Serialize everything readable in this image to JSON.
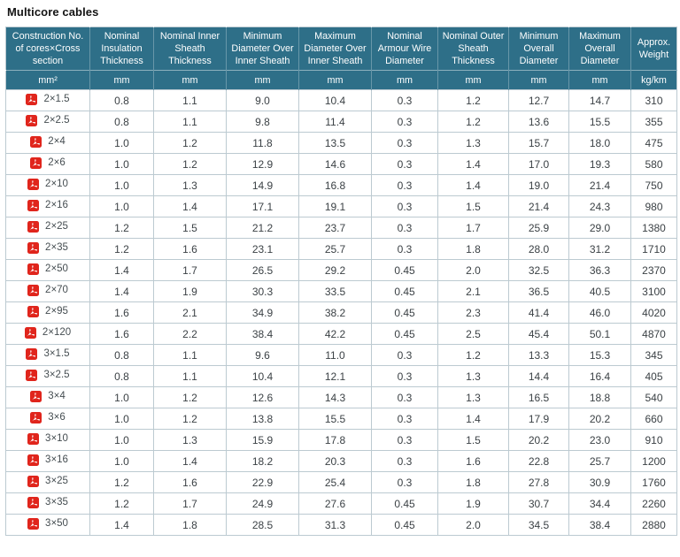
{
  "page": {
    "title": "Multicore cables"
  },
  "colors": {
    "header_bg": "#2e6f88",
    "header_text": "#ffffff",
    "border": "#bccad1",
    "pdf_red": "#e0251c",
    "row_text": "#3b4145"
  },
  "icons": {
    "row_link": "pdf-file-icon"
  },
  "table": {
    "headers": [
      "Construction No. of cores×Cross section",
      "Nominal Insulation Thickness",
      "Nominal Inner Sheath Thickness",
      "Minimum Diameter Over Inner Sheath",
      "Maximum Diameter Over Inner Sheath",
      "Nominal Armour Wire Diameter",
      "Nominal Outer Sheath Thickness",
      "Minimum Overall Diameter",
      "Maximum Overall Diameter",
      "Approx. Weight"
    ],
    "units": [
      "mm²",
      "mm",
      "mm",
      "mm",
      "mm",
      "mm",
      "mm",
      "mm",
      "mm",
      "kg/km"
    ],
    "rows": [
      {
        "construction": "2×1.5",
        "values": [
          "0.8",
          "1.1",
          "9.0",
          "10.4",
          "0.3",
          "1.2",
          "12.7",
          "14.7",
          "310"
        ]
      },
      {
        "construction": "2×2.5",
        "values": [
          "0.8",
          "1.1",
          "9.8",
          "11.4",
          "0.3",
          "1.2",
          "13.6",
          "15.5",
          "355"
        ]
      },
      {
        "construction": "2×4",
        "values": [
          "1.0",
          "1.2",
          "11.8",
          "13.5",
          "0.3",
          "1.3",
          "15.7",
          "18.0",
          "475"
        ]
      },
      {
        "construction": "2×6",
        "values": [
          "1.0",
          "1.2",
          "12.9",
          "14.6",
          "0.3",
          "1.4",
          "17.0",
          "19.3",
          "580"
        ]
      },
      {
        "construction": "2×10",
        "values": [
          "1.0",
          "1.3",
          "14.9",
          "16.8",
          "0.3",
          "1.4",
          "19.0",
          "21.4",
          "750"
        ]
      },
      {
        "construction": "2×16",
        "values": [
          "1.0",
          "1.4",
          "17.1",
          "19.1",
          "0.3",
          "1.5",
          "21.4",
          "24.3",
          "980"
        ]
      },
      {
        "construction": "2×25",
        "values": [
          "1.2",
          "1.5",
          "21.2",
          "23.7",
          "0.3",
          "1.7",
          "25.9",
          "29.0",
          "1380"
        ]
      },
      {
        "construction": "2×35",
        "values": [
          "1.2",
          "1.6",
          "23.1",
          "25.7",
          "0.3",
          "1.8",
          "28.0",
          "31.2",
          "1710"
        ]
      },
      {
        "construction": "2×50",
        "values": [
          "1.4",
          "1.7",
          "26.5",
          "29.2",
          "0.45",
          "2.0",
          "32.5",
          "36.3",
          "2370"
        ]
      },
      {
        "construction": "2×70",
        "values": [
          "1.4",
          "1.9",
          "30.3",
          "33.5",
          "0.45",
          "2.1",
          "36.5",
          "40.5",
          "3100"
        ]
      },
      {
        "construction": "2×95",
        "values": [
          "1.6",
          "2.1",
          "34.9",
          "38.2",
          "0.45",
          "2.3",
          "41.4",
          "46.0",
          "4020"
        ]
      },
      {
        "construction": "2×120",
        "values": [
          "1.6",
          "2.2",
          "38.4",
          "42.2",
          "0.45",
          "2.5",
          "45.4",
          "50.1",
          "4870"
        ]
      },
      {
        "construction": "3×1.5",
        "values": [
          "0.8",
          "1.1",
          "9.6",
          "11.0",
          "0.3",
          "1.2",
          "13.3",
          "15.3",
          "345"
        ]
      },
      {
        "construction": "3×2.5",
        "values": [
          "0.8",
          "1.1",
          "10.4",
          "12.1",
          "0.3",
          "1.3",
          "14.4",
          "16.4",
          "405"
        ]
      },
      {
        "construction": "3×4",
        "values": [
          "1.0",
          "1.2",
          "12.6",
          "14.3",
          "0.3",
          "1.3",
          "16.5",
          "18.8",
          "540"
        ]
      },
      {
        "construction": "3×6",
        "values": [
          "1.0",
          "1.2",
          "13.8",
          "15.5",
          "0.3",
          "1.4",
          "17.9",
          "20.2",
          "660"
        ]
      },
      {
        "construction": "3×10",
        "values": [
          "1.0",
          "1.3",
          "15.9",
          "17.8",
          "0.3",
          "1.5",
          "20.2",
          "23.0",
          "910"
        ]
      },
      {
        "construction": "3×16",
        "values": [
          "1.0",
          "1.4",
          "18.2",
          "20.3",
          "0.3",
          "1.6",
          "22.8",
          "25.7",
          "1200"
        ]
      },
      {
        "construction": "3×25",
        "values": [
          "1.2",
          "1.6",
          "22.9",
          "25.4",
          "0.3",
          "1.8",
          "27.8",
          "30.9",
          "1760"
        ]
      },
      {
        "construction": "3×35",
        "values": [
          "1.2",
          "1.7",
          "24.9",
          "27.6",
          "0.45",
          "1.9",
          "30.7",
          "34.4",
          "2260"
        ]
      },
      {
        "construction": "3×50",
        "values": [
          "1.4",
          "1.8",
          "28.5",
          "31.3",
          "0.45",
          "2.0",
          "34.5",
          "38.4",
          "2880"
        ]
      }
    ]
  }
}
